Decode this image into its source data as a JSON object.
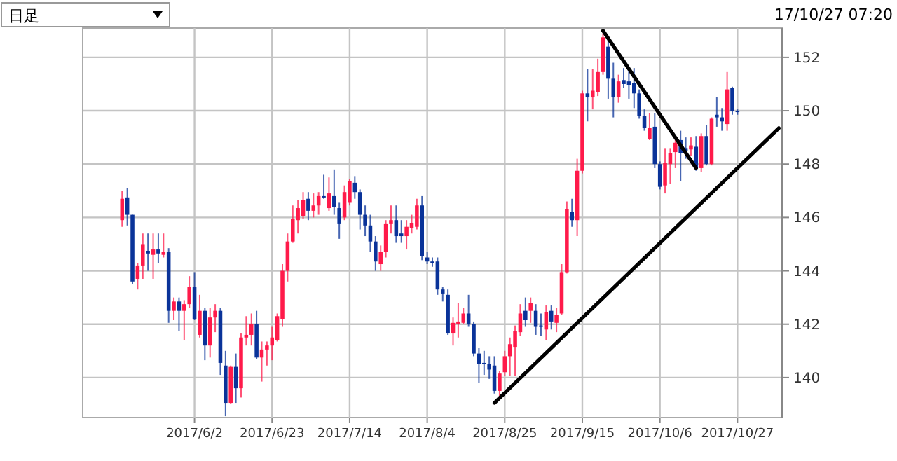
{
  "chart_data": {
    "type": "candlestick",
    "categories": [
      null,
      null,
      null,
      null,
      null,
      null,
      null,
      null,
      null,
      null,
      null,
      null,
      null,
      null,
      null,
      null,
      null,
      null,
      null,
      null,
      null,
      "2017/6/2",
      null,
      null,
      null,
      null,
      null,
      null,
      null,
      null,
      null,
      null,
      null,
      null,
      null,
      null,
      "2017/6/23",
      null,
      null,
      null,
      null,
      null,
      null,
      null,
      null,
      null,
      null,
      null,
      null,
      null,
      null,
      "2017/7/14",
      null,
      null,
      null,
      null,
      null,
      null,
      null,
      null,
      null,
      null,
      null,
      null,
      null,
      null,
      "2017/8/4",
      null,
      null,
      null,
      null,
      null,
      null,
      null,
      null,
      null,
      null,
      null,
      null,
      null,
      null,
      "2017/8/25",
      null,
      null,
      null,
      null,
      null,
      null,
      null,
      null,
      null,
      null,
      null,
      null,
      null,
      null,
      "2017/9/15",
      null,
      null,
      null,
      null,
      null,
      null,
      null,
      null,
      null,
      null,
      null,
      null,
      null,
      null,
      "2017/10/6",
      null,
      null,
      null,
      null,
      null,
      null,
      null,
      null,
      null,
      null,
      null,
      null,
      null,
      null,
      "2017/10/27",
      null,
      null,
      null,
      null,
      null,
      null,
      null,
      null
    ],
    "series": [
      {
        "ohlc": [
          null,
          null,
          null,
          null,
          null,
          null,
          null,
          [
            145.9,
            147.0,
            145.65,
            146.7
          ],
          [
            146.75,
            147.1,
            145.7,
            146.1
          ],
          [
            146.1,
            146.1,
            143.5,
            143.6
          ],
          [
            143.7,
            144.3,
            143.3,
            144.2
          ],
          [
            144.2,
            145.4,
            143.7,
            145.0
          ],
          [
            144.75,
            145.4,
            144.0,
            144.65
          ],
          [
            144.6,
            145.4,
            143.7,
            144.8
          ],
          [
            144.8,
            145.4,
            144.3,
            144.65
          ],
          [
            144.6,
            145.4,
            144.5,
            144.7
          ],
          [
            144.7,
            144.85,
            142.05,
            142.5
          ],
          [
            142.5,
            143.0,
            142.15,
            142.85
          ],
          [
            142.85,
            143.0,
            141.75,
            142.5
          ],
          [
            142.5,
            142.9,
            141.4,
            142.75
          ],
          [
            142.75,
            143.8,
            142.6,
            143.4
          ],
          [
            143.4,
            143.95,
            142.15,
            142.2
          ],
          [
            141.6,
            143.1,
            141.5,
            142.5
          ],
          [
            142.5,
            142.6,
            140.65,
            141.2
          ],
          [
            141.2,
            142.6,
            140.75,
            142.25
          ],
          [
            142.25,
            142.75,
            141.7,
            142.5
          ],
          [
            142.5,
            142.6,
            140.1,
            140.55
          ],
          [
            140.45,
            141.0,
            138.55,
            139.05
          ],
          [
            139.05,
            140.45,
            139.0,
            140.4
          ],
          [
            140.4,
            140.9,
            139.05,
            139.6
          ],
          [
            139.6,
            141.65,
            139.25,
            141.5
          ],
          [
            141.5,
            142.3,
            141.2,
            141.6
          ],
          [
            141.6,
            142.4,
            141.2,
            142.0
          ],
          [
            142.0,
            142.5,
            140.7,
            140.75
          ],
          [
            140.75,
            141.35,
            139.85,
            141.05
          ],
          [
            141.05,
            141.35,
            140.45,
            141.2
          ],
          [
            141.2,
            141.9,
            140.65,
            141.5
          ],
          [
            141.4,
            142.4,
            141.35,
            142.3
          ],
          [
            142.2,
            144.25,
            141.9,
            144.0
          ],
          [
            144.0,
            145.4,
            143.6,
            145.1
          ],
          [
            145.1,
            146.45,
            145.05,
            145.95
          ],
          [
            145.9,
            146.65,
            145.4,
            146.35
          ],
          [
            146.05,
            146.95,
            145.95,
            146.65
          ],
          [
            146.7,
            146.95,
            145.9,
            146.25
          ],
          [
            146.25,
            146.9,
            146.0,
            146.45
          ],
          [
            146.45,
            146.95,
            146.1,
            146.8
          ],
          [
            146.8,
            147.6,
            146.7,
            146.75
          ],
          [
            146.35,
            147.5,
            146.25,
            146.9
          ],
          [
            146.8,
            147.8,
            146.1,
            146.4
          ],
          [
            146.35,
            146.55,
            145.2,
            145.75
          ],
          [
            146.0,
            147.2,
            145.9,
            146.95
          ],
          [
            146.55,
            147.45,
            146.45,
            147.35
          ],
          [
            147.3,
            147.55,
            146.7,
            146.95
          ],
          [
            146.95,
            147.05,
            145.55,
            146.1
          ],
          [
            146.1,
            146.45,
            145.3,
            145.7
          ],
          [
            145.7,
            146.1,
            144.7,
            145.1
          ],
          [
            145.1,
            145.3,
            144.0,
            144.35
          ],
          [
            144.25,
            144.95,
            144.0,
            144.7
          ],
          [
            144.7,
            145.9,
            144.5,
            145.75
          ],
          [
            145.75,
            146.45,
            145.4,
            145.9
          ],
          [
            145.9,
            146.45,
            145.05,
            145.3
          ],
          [
            145.4,
            145.9,
            145.05,
            145.3
          ],
          [
            145.3,
            145.9,
            144.8,
            145.65
          ],
          [
            145.6,
            146.1,
            145.4,
            145.8
          ],
          [
            145.65,
            146.7,
            145.55,
            146.45
          ],
          [
            146.45,
            146.8,
            144.4,
            144.55
          ],
          [
            144.5,
            144.7,
            144.25,
            144.35
          ],
          [
            144.35,
            144.5,
            144.15,
            144.3
          ],
          [
            144.35,
            144.5,
            143.1,
            143.3
          ],
          [
            143.3,
            143.4,
            142.85,
            143.15
          ],
          [
            143.1,
            143.3,
            141.6,
            141.65
          ],
          [
            141.65,
            142.25,
            141.2,
            142.05
          ],
          [
            142.0,
            142.8,
            141.5,
            142.1
          ],
          [
            142.05,
            142.6,
            142.0,
            142.4
          ],
          [
            142.4,
            143.1,
            141.9,
            142.0
          ],
          [
            142.0,
            142.1,
            140.8,
            140.9
          ],
          [
            140.9,
            141.1,
            139.8,
            140.5
          ],
          [
            140.55,
            141.0,
            140.1,
            140.5
          ],
          [
            140.5,
            140.8,
            139.95,
            140.3
          ],
          [
            140.45,
            140.8,
            139.4,
            139.5
          ],
          [
            139.5,
            140.25,
            139.25,
            140.15
          ],
          [
            140.2,
            141.0,
            140.05,
            140.8
          ],
          [
            140.8,
            141.5,
            140.05,
            141.25
          ],
          [
            141.15,
            141.95,
            140.05,
            141.75
          ],
          [
            141.7,
            142.75,
            141.55,
            142.4
          ],
          [
            142.5,
            143.0,
            141.9,
            142.15
          ],
          [
            142.5,
            143.0,
            142.05,
            142.8
          ],
          [
            142.5,
            142.75,
            141.6,
            141.9
          ],
          [
            141.95,
            142.4,
            141.55,
            141.9
          ],
          [
            141.8,
            142.7,
            141.4,
            142.45
          ],
          [
            142.5,
            142.7,
            141.8,
            142.1
          ],
          [
            142.05,
            142.6,
            141.7,
            142.35
          ],
          [
            142.4,
            144.25,
            142.35,
            143.95
          ],
          [
            143.95,
            146.6,
            143.9,
            146.3
          ],
          [
            146.2,
            146.7,
            145.65,
            145.9
          ],
          [
            145.9,
            148.2,
            145.3,
            147.75
          ],
          [
            147.75,
            150.75,
            147.65,
            150.65
          ],
          [
            150.65,
            151.55,
            149.6,
            150.5
          ],
          [
            150.5,
            151.55,
            150.05,
            150.75
          ],
          [
            150.7,
            151.95,
            150.55,
            151.45
          ],
          [
            151.45,
            152.9,
            151.35,
            152.75
          ],
          [
            152.4,
            152.75,
            150.45,
            151.2
          ],
          [
            151.2,
            151.8,
            149.75,
            150.5
          ],
          [
            150.5,
            151.35,
            150.3,
            151.1
          ],
          [
            151.15,
            151.6,
            150.85,
            151.0
          ],
          [
            151.1,
            151.55,
            150.45,
            150.95
          ],
          [
            151.05,
            151.6,
            150.1,
            150.65
          ],
          [
            150.65,
            150.8,
            149.7,
            149.8
          ],
          [
            149.8,
            150.05,
            149.25,
            149.35
          ],
          [
            148.95,
            149.9,
            148.9,
            149.35
          ],
          [
            149.4,
            149.9,
            147.85,
            148.0
          ],
          [
            148.0,
            148.1,
            147.05,
            147.15
          ],
          [
            147.2,
            148.6,
            146.9,
            148.05
          ],
          [
            148.0,
            148.6,
            147.25,
            148.4
          ],
          [
            148.45,
            149.0,
            147.85,
            148.8
          ],
          [
            148.9,
            149.25,
            147.35,
            148.4
          ],
          [
            148.6,
            149.0,
            148.2,
            148.5
          ],
          [
            148.55,
            149.0,
            148.3,
            148.7
          ],
          [
            148.65,
            149.05,
            147.75,
            147.85
          ],
          [
            147.85,
            149.15,
            147.7,
            149.05
          ],
          [
            149.05,
            149.45,
            147.95,
            148.0
          ],
          [
            148.0,
            149.75,
            147.95,
            149.7
          ],
          [
            149.85,
            150.5,
            149.4,
            149.75
          ],
          [
            149.75,
            150.1,
            149.25,
            149.6
          ],
          [
            149.5,
            151.45,
            149.25,
            150.8
          ],
          [
            150.85,
            150.9,
            149.85,
            150.0
          ],
          [
            150.0,
            150.05,
            149.85,
            149.95
          ],
          null,
          null,
          null,
          null,
          null,
          null,
          null,
          null
        ],
        "colors": [
          null,
          null,
          null,
          null,
          null,
          null,
          null,
          "#ff1a4a",
          "#0a3399",
          "#0a3399",
          "#ff1a4a",
          "#ff1a4a",
          "#0a3399",
          "#ff1a4a",
          "#0a3399",
          "#ff1a4a",
          "#0a3399",
          "#ff1a4a",
          "#0a3399",
          "#ff1a4a",
          "#ff1a4a",
          "#0a3399",
          "#ff1a4a",
          "#0a3399",
          "#ff1a4a",
          "#ff1a4a",
          "#0a3399",
          "#0a3399",
          "#ff1a4a",
          "#0a3399",
          "#ff1a4a",
          "#ff1a4a",
          "#ff1a4a",
          "#0a3399",
          "#ff1a4a",
          "#ff1a4a",
          "#ff1a4a",
          "#ff1a4a",
          "#ff1a4a",
          "#ff1a4a",
          "#ff1a4a",
          "#ff1a4a",
          "#ff1a4a",
          "#0a3399",
          "#ff1a4a",
          "#ff1a4a",
          "#0a3399",
          "#ff1a4a",
          "#0a3399",
          "#0a3399",
          "#ff1a4a",
          "#ff1a4a",
          "#0a3399",
          "#0a3399",
          "#0a3399",
          "#0a3399",
          "#0a3399",
          "#ff1a4a",
          "#ff1a4a",
          "#ff1a4a",
          "#0a3399",
          "#0a3399",
          "#ff1a4a",
          "#ff1a4a",
          "#ff1a4a",
          "#0a3399",
          "#0a3399",
          "#0a3399",
          "#0a3399",
          "#0a3399",
          "#0a3399",
          "#ff1a4a",
          "#ff1a4a",
          "#ff1a4a",
          "#0a3399",
          "#0a3399",
          "#0a3399",
          "#0a3399",
          "#0a3399",
          "#0a3399",
          "#ff1a4a",
          "#ff1a4a",
          "#ff1a4a",
          "#ff1a4a",
          "#ff1a4a",
          "#0a3399",
          "#ff1a4a",
          "#0a3399",
          "#0a3399",
          "#ff1a4a",
          "#0a3399",
          "#ff1a4a",
          "#ff1a4a",
          "#ff1a4a",
          "#0a3399",
          "#ff1a4a",
          "#ff1a4a",
          "#0a3399",
          "#ff1a4a",
          "#ff1a4a",
          "#ff1a4a",
          "#0a3399",
          "#0a3399",
          "#ff1a4a",
          "#0a3399",
          "#0a3399",
          "#0a3399",
          "#0a3399",
          "#0a3399",
          "#ff1a4a",
          "#0a3399",
          "#0a3399",
          "#ff1a4a",
          "#ff1a4a",
          "#ff1a4a",
          "#0a3399",
          "#0a3399",
          "#ff1a4a",
          "#0a3399",
          "#ff1a4a",
          "#0a3399",
          "#ff1a4a",
          "#0a3399",
          "#0a3399",
          "#ff1a4a",
          "#0a3399",
          "#0a3399",
          null,
          null,
          null,
          null,
          null,
          null,
          null,
          null
        ]
      },
      {
        "type": "line",
        "color": "#000000",
        "values": [
          null,
          null,
          null,
          null,
          null,
          null,
          null,
          null,
          null,
          null,
          null,
          null,
          null,
          null,
          null,
          null,
          null,
          null,
          null,
          null,
          null,
          null,
          null,
          null,
          null,
          null,
          null,
          null,
          null,
          null,
          null,
          null,
          null,
          null,
          null,
          null,
          null,
          null,
          null,
          null,
          null,
          null,
          null,
          null,
          null,
          null,
          null,
          null,
          null,
          null,
          null,
          null,
          null,
          null,
          null,
          null,
          null,
          null,
          null,
          null,
          null,
          null,
          null,
          null,
          null,
          null,
          null,
          null,
          null,
          null,
          null,
          null,
          null,
          null,
          null,
          null,
          null,
          null,
          null,
          139.05,
          null,
          null,
          null,
          null,
          null,
          null,
          null,
          null,
          null,
          null,
          null,
          null,
          null,
          null,
          null,
          null,
          null,
          null,
          null,
          null,
          null,
          null,
          null,
          null,
          null,
          null,
          null,
          null,
          null,
          null,
          null,
          null,
          null,
          null,
          null,
          null,
          null,
          null,
          null,
          null,
          null,
          null,
          null,
          null,
          null,
          null,
          null,
          null,
          null,
          null,
          null,
          null,
          null,
          null,
          149.35
        ]
      },
      {
        "type": "line",
        "color": "#000000",
        "values": [
          null,
          null,
          null,
          null,
          null,
          null,
          null,
          null,
          null,
          null,
          null,
          null,
          null,
          null,
          null,
          null,
          null,
          null,
          null,
          null,
          null,
          null,
          null,
          null,
          null,
          null,
          null,
          null,
          null,
          null,
          null,
          null,
          null,
          null,
          null,
          null,
          null,
          null,
          null,
          null,
          null,
          null,
          null,
          null,
          null,
          null,
          null,
          null,
          null,
          null,
          null,
          null,
          null,
          null,
          null,
          null,
          null,
          null,
          null,
          null,
          null,
          null,
          null,
          null,
          null,
          null,
          null,
          null,
          null,
          null,
          null,
          null,
          null,
          null,
          null,
          null,
          null,
          null,
          null,
          null,
          null,
          null,
          null,
          null,
          null,
          null,
          null,
          null,
          null,
          null,
          null,
          null,
          null,
          null,
          null,
          null,
          null,
          null,
          null,
          null,
          153.0,
          null,
          null,
          null,
          null,
          null,
          null,
          null,
          null,
          null,
          null,
          null,
          null,
          null,
          null,
          null,
          null,
          null,
          147.85,
          null,
          null,
          null,
          null,
          null,
          null,
          null,
          null,
          null,
          null,
          null,
          null,
          null,
          null,
          null,
          null
        ]
      }
    ],
    "ylim": [
      138.5,
      153.1
    ],
    "yticks": [
      140,
      142,
      144,
      146,
      148,
      150,
      152
    ],
    "grid": true,
    "annotations": [
      "日足",
      "17/10/27 07:20"
    ]
  }
}
